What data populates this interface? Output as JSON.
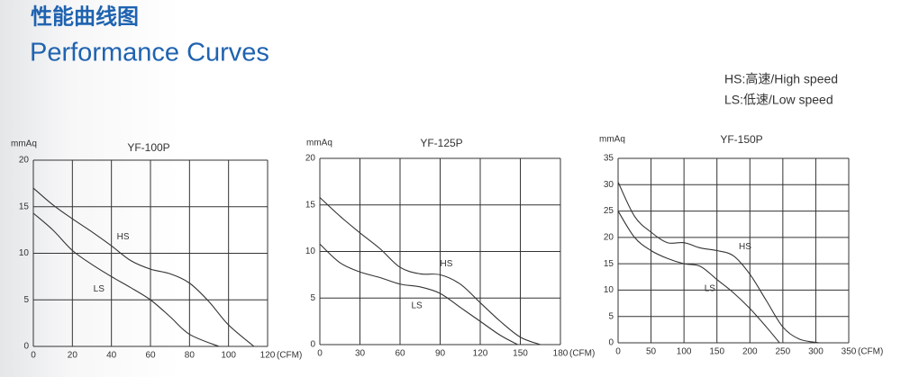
{
  "header": {
    "title_cn": "性能曲线图",
    "title_en": "Performance Curves",
    "legend_hs": "HS:高速/High speed",
    "legend_ls": "LS:低速/Low speed"
  },
  "chart_data": [
    {
      "type": "line",
      "title": "YF-100P",
      "ylabel": "mmAq",
      "xlabel": "(CFM)",
      "xlim": [
        0,
        120
      ],
      "xticks": [
        0,
        20,
        40,
        60,
        80,
        100,
        120
      ],
      "ylim": [
        0,
        20
      ],
      "yticks": [
        0,
        5,
        10,
        15,
        20
      ],
      "grid": true,
      "series": [
        {
          "name": "HS",
          "color": "#333333",
          "x": [
            0,
            10,
            20,
            30,
            40,
            50,
            60,
            70,
            80,
            90,
            100,
            113
          ],
          "values": [
            17,
            15.2,
            13.7,
            12.3,
            10.8,
            9.2,
            8.3,
            7.8,
            6.8,
            4.8,
            2.3,
            0
          ]
        },
        {
          "name": "LS",
          "color": "#333333",
          "x": [
            0,
            10,
            20,
            30,
            40,
            50,
            60,
            70,
            80,
            95
          ],
          "values": [
            14.3,
            12.5,
            10.3,
            8.8,
            7.5,
            6.3,
            5,
            3.2,
            1.3,
            0
          ]
        }
      ]
    },
    {
      "type": "line",
      "title": "YF-125P",
      "ylabel": "mmAq",
      "xlabel": "(CFM)",
      "xlim": [
        0,
        180
      ],
      "xticks": [
        0,
        30,
        60,
        90,
        120,
        150,
        180
      ],
      "ylim": [
        0,
        20
      ],
      "yticks": [
        0,
        5,
        10,
        15,
        20
      ],
      "grid": true,
      "series": [
        {
          "name": "HS",
          "color": "#333333",
          "x": [
            0,
            15,
            30,
            45,
            60,
            75,
            90,
            105,
            120,
            135,
            150,
            165
          ],
          "values": [
            15.8,
            13.8,
            12,
            10.3,
            8.3,
            7.6,
            7.5,
            6.5,
            4.5,
            2.5,
            0.8,
            0
          ]
        },
        {
          "name": "LS",
          "color": "#333333",
          "x": [
            0,
            15,
            30,
            45,
            60,
            75,
            90,
            105,
            120,
            135,
            148
          ],
          "values": [
            10.8,
            8.8,
            7.8,
            7.2,
            6.5,
            6.2,
            5.5,
            4,
            2.5,
            1,
            0
          ]
        }
      ]
    },
    {
      "type": "line",
      "title": "YF-150P",
      "ylabel": "mmAq",
      "xlabel": "(CFM)",
      "xlim": [
        0,
        350
      ],
      "xticks": [
        0,
        50,
        100,
        150,
        200,
        250,
        300,
        350
      ],
      "ylim": [
        0,
        35
      ],
      "yticks": [
        0,
        5,
        10,
        15,
        20,
        25,
        30,
        35
      ],
      "grid": true,
      "series": [
        {
          "name": "HS",
          "color": "#333333",
          "x": [
            0,
            25,
            50,
            75,
            100,
            125,
            150,
            175,
            200,
            225,
            250,
            275,
            305
          ],
          "values": [
            30.5,
            24,
            21,
            19,
            19,
            18,
            17.5,
            16.5,
            13,
            8,
            3,
            0.7,
            0
          ]
        },
        {
          "name": "LS",
          "color": "#333333",
          "x": [
            0,
            25,
            50,
            75,
            100,
            125,
            150,
            175,
            200,
            225,
            245
          ],
          "values": [
            25,
            20,
            17.5,
            16,
            15,
            14.5,
            12,
            9.5,
            6.5,
            3,
            0
          ]
        }
      ]
    }
  ]
}
